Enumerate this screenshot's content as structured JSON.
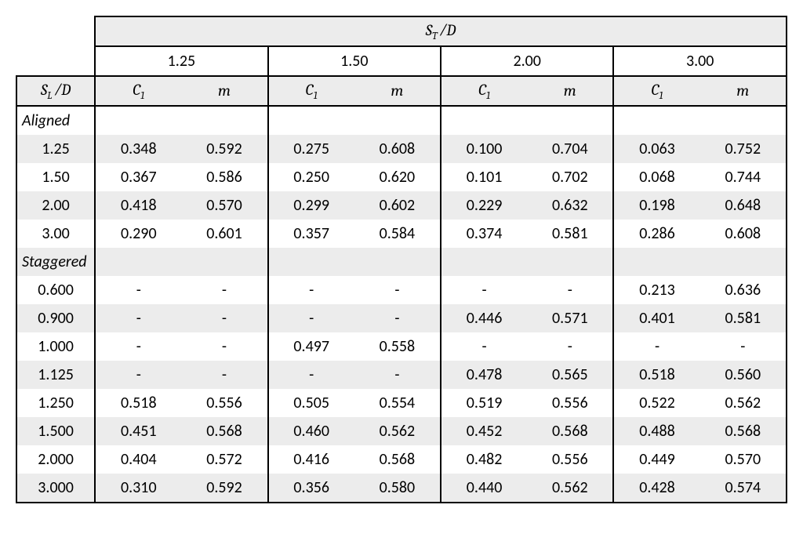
{
  "type": "table",
  "background_color": "#ffffff",
  "shade_color": "#ececec",
  "border_color": "#000000",
  "font_family": "Calibri",
  "font_size_pt": 15,
  "header": {
    "top_label_html": "<span class=\"mathS\">S<span class=\"sub\">T</span></span>&thinsp;/<span class=\"mathD\">D</span>",
    "row_label_html": "<span class=\"mathS\">S<span class=\"sub\">L</span></span>&thinsp;/<span class=\"mathD\">D</span>",
    "group_values": [
      "1.25",
      "1.50",
      "2.00",
      "3.00"
    ],
    "sub_c1_html": "<span class=\"mathC\">C<span class=\"sub\">1</span></span>",
    "sub_m_html": "<span class=\"mathm\">m</span>"
  },
  "sections": [
    {
      "name": "Aligned",
      "rows": [
        {
          "label": "1.25",
          "cells": [
            "0.348",
            "0.592",
            "0.275",
            "0.608",
            "0.100",
            "0.704",
            "0.063",
            "0.752"
          ]
        },
        {
          "label": "1.50",
          "cells": [
            "0.367",
            "0.586",
            "0.250",
            "0.620",
            "0.101",
            "0.702",
            "0.068",
            "0.744"
          ]
        },
        {
          "label": "2.00",
          "cells": [
            "0.418",
            "0.570",
            "0.299",
            "0.602",
            "0.229",
            "0.632",
            "0.198",
            "0.648"
          ]
        },
        {
          "label": "3.00",
          "cells": [
            "0.290",
            "0.601",
            "0.357",
            "0.584",
            "0.374",
            "0.581",
            "0.286",
            "0.608"
          ]
        }
      ]
    },
    {
      "name": "Staggered",
      "rows": [
        {
          "label": "0.600",
          "cells": [
            "-",
            "-",
            "-",
            "-",
            "-",
            "-",
            "0.213",
            "0.636"
          ]
        },
        {
          "label": "0.900",
          "cells": [
            "-",
            "-",
            "-",
            "-",
            "0.446",
            "0.571",
            "0.401",
            "0.581"
          ]
        },
        {
          "label": "1.000",
          "cells": [
            "-",
            "-",
            "0.497",
            "0.558",
            "-",
            "-",
            "-",
            "-"
          ]
        },
        {
          "label": "1.125",
          "cells": [
            "-",
            "-",
            "-",
            "-",
            "0.478",
            "0.565",
            "0.518",
            "0.560"
          ]
        },
        {
          "label": "1.250",
          "cells": [
            "0.518",
            "0.556",
            "0.505",
            "0.554",
            "0.519",
            "0.556",
            "0.522",
            "0.562"
          ]
        },
        {
          "label": "1.500",
          "cells": [
            "0.451",
            "0.568",
            "0.460",
            "0.562",
            "0.452",
            "0.568",
            "0.488",
            "0.568"
          ]
        },
        {
          "label": "2.000",
          "cells": [
            "0.404",
            "0.572",
            "0.416",
            "0.568",
            "0.482",
            "0.556",
            "0.449",
            "0.570"
          ]
        },
        {
          "label": "3.000",
          "cells": [
            "0.310",
            "0.592",
            "0.356",
            "0.580",
            "0.440",
            "0.562",
            "0.428",
            "0.574"
          ]
        }
      ]
    }
  ]
}
